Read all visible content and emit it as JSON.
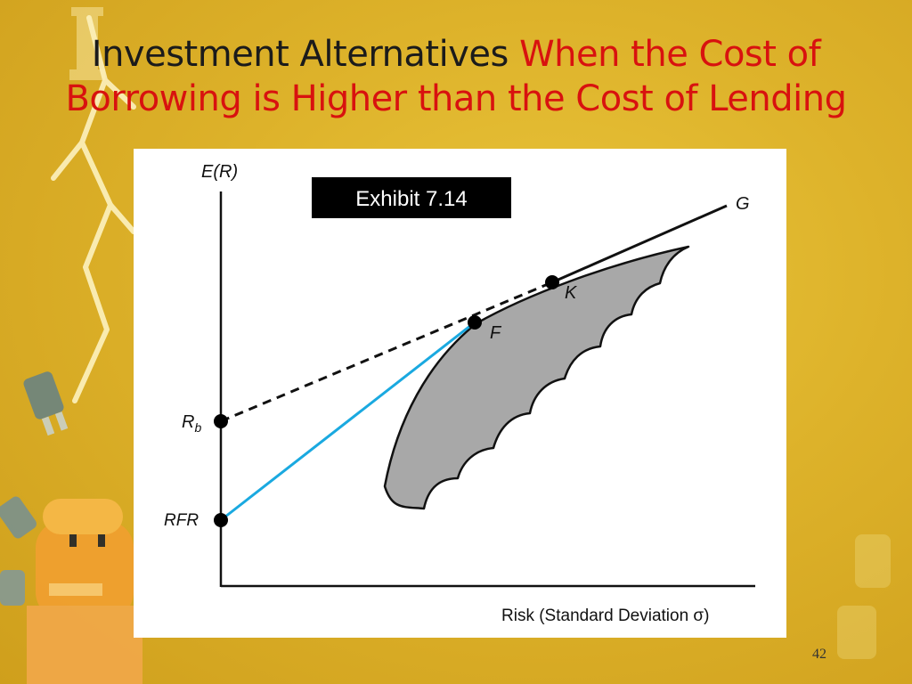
{
  "slide": {
    "title_part1": "Investment Alternatives",
    "title_part2": "When the Cost of Borrowing is Higher than the Cost of Lending",
    "page_number": "42"
  },
  "exhibit": {
    "label": "Exhibit 7.14",
    "y_axis_label": "E(R)",
    "x_axis_label": "Risk (Standard Deviation σ)",
    "rb_label": "R",
    "rb_subscript": "b",
    "rfr_label": "RFR",
    "point_f_label": "F",
    "point_k_label": "K",
    "line_g_label": "G"
  },
  "colors": {
    "background": "#ddb22a",
    "title_black": "#1b1b1b",
    "title_red": "#d8120f",
    "lending_line": "#1aa9e0",
    "frontier_fill": "#a8a8a8"
  }
}
